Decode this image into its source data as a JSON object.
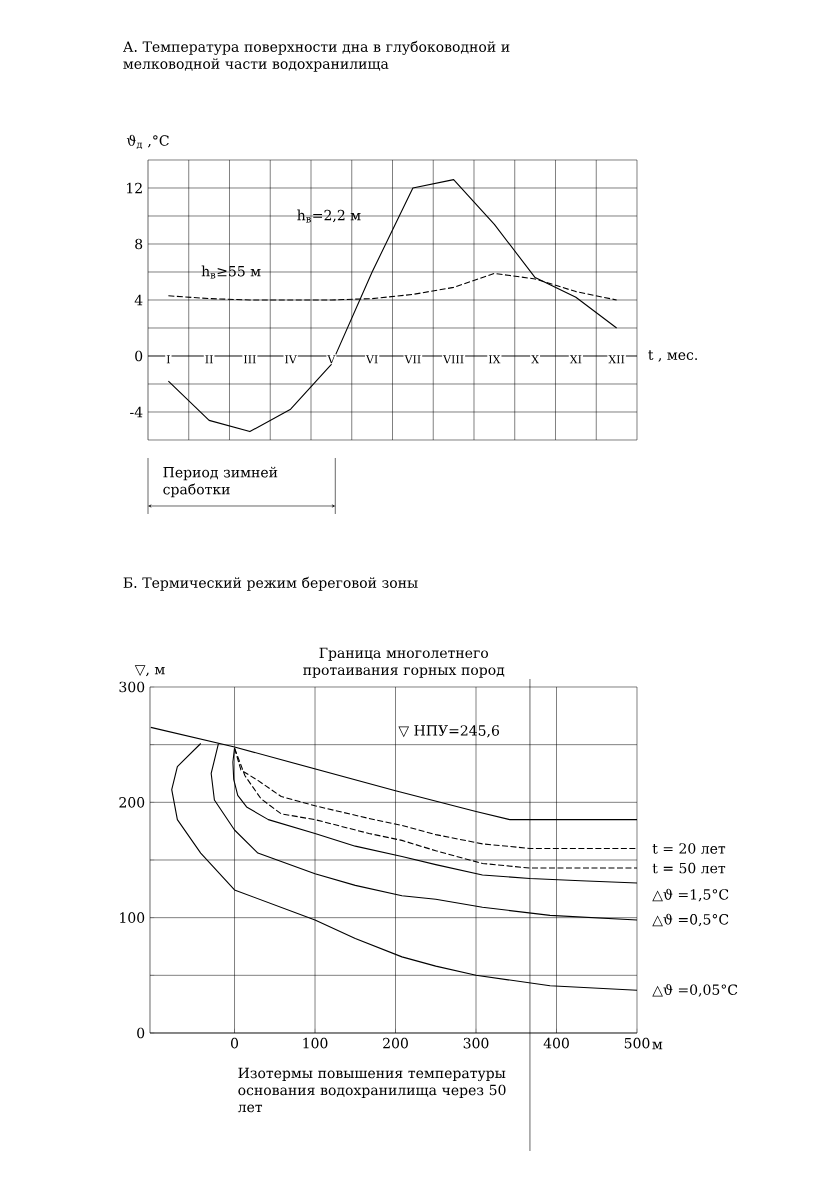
{
  "chart_data": [
    {
      "type": "line",
      "title": "А. Температура поверхности дна в глубоководной и мелководной части водохранилища",
      "xlabel": "t , мес.",
      "ylabel": "ϑ$_{д}$ ,°C",
      "categories": [
        "I",
        "II",
        "III",
        "IV",
        "V",
        "VI",
        "VII",
        "VIII",
        "IX",
        "X",
        "XI",
        "XII"
      ],
      "ylim": [
        -6,
        14
      ],
      "yticks": [
        {
          "value": -6,
          "label": null
        },
        -4,
        {
          "value": -2,
          "label": null
        },
        0,
        {
          "value": 2,
          "label": null
        },
        4,
        {
          "value": 6,
          "label": null
        },
        8,
        {
          "value": 10,
          "label": null
        },
        12,
        {
          "value": 14,
          "label": null
        }
      ],
      "grid": true,
      "series": [
        {
          "name": "h$_{в}$=2,2 м",
          "color": "#000000",
          "line_style": "solid",
          "values": [
            -1.8,
            -4.6,
            -5.4,
            -3.8,
            -0.6,
            6.0,
            12.0,
            12.6,
            9.4,
            5.6,
            4.2,
            2.0
          ]
        },
        {
          "name": "h$_{в}$≥55 м",
          "color": "#000000",
          "line_style": "dashed",
          "values": [
            4.3,
            4.1,
            4.0,
            4.0,
            4.0,
            4.1,
            4.4,
            4.9,
            5.9,
            5.5,
            4.6,
            4.0
          ]
        }
      ],
      "annotations": [
        "Период зимней сработки"
      ]
    },
    {
      "type": "line",
      "title": "Б. Термический режим береговой зоны",
      "xlabel": "м",
      "ylabel": "▽, м",
      "xlim": [
        -105,
        500
      ],
      "ylim": [
        0,
        300
      ],
      "xticks": [
        0,
        100,
        200,
        300,
        400,
        500
      ],
      "yticks": [
        0,
        {
          "value": 50,
          "label": null
        },
        100,
        {
          "value": 150,
          "label": null
        },
        200,
        {
          "value": 250,
          "label": null
        },
        300
      ],
      "grid": true,
      "series": [
        {
          "color": "#000000",
          "line_style": "solid",
          "x": [
            -104,
            0,
            100,
            200,
            300,
            342,
            400,
            500
          ],
          "values": [
            265,
            248,
            229,
            210,
            192,
            185,
            185,
            185
          ]
        },
        {
          "name": "t = 20 лет",
          "color": "#000000",
          "line_style": "dashed",
          "x": [
            0,
            8,
            29,
            58,
            100,
            167,
            208,
            250,
            308,
            367,
            430,
            500
          ],
          "values": [
            247,
            228,
            219,
            205,
            197,
            186,
            180,
            172,
            164,
            160,
            160,
            160
          ]
        },
        {
          "name": "t = 50 лет",
          "color": "#000000",
          "line_style": "dashed",
          "x": [
            0,
            13,
            33,
            58,
            100,
            167,
            208,
            250,
            308,
            367,
            430,
            500
          ],
          "values": [
            247,
            223,
            203,
            190,
            185,
            173,
            167,
            158,
            147,
            143,
            143,
            143
          ]
        },
        {
          "name": "△ϑ =1,5°C",
          "color": "#000000",
          "line_style": "solid",
          "x": [
            0,
            -2,
            -1,
            4,
            15,
            42,
            100,
            150,
            208,
            250,
            308,
            367,
            430,
            500
          ],
          "values": [
            247,
            235,
            220,
            206,
            196,
            185,
            173,
            162,
            153,
            146,
            137,
            134,
            132,
            130
          ]
        },
        {
          "name": "△ϑ =0,5°C",
          "color": "#000000",
          "line_style": "solid",
          "x": [
            -20,
            -29,
            -25,
            0,
            29,
            100,
            150,
            208,
            250,
            308,
            392,
            500
          ],
          "values": [
            251,
            225,
            202,
            176,
            156,
            138,
            128,
            119,
            116,
            109,
            102,
            98
          ]
        },
        {
          "name": "△ϑ =0,05°C",
          "color": "#000000",
          "line_style": "solid",
          "x": [
            -42,
            -71,
            -78,
            -71,
            -42,
            0,
            100,
            150,
            208,
            250,
            300,
            392,
            500
          ],
          "values": [
            251,
            231,
            211,
            185,
            156,
            124,
            98,
            82,
            66,
            58,
            50,
            41,
            37
          ]
        }
      ],
      "ref_lines": [
        {
          "axis": "x",
          "value": 367,
          "label": "Граница многолетнего протаивания горных пород"
        }
      ],
      "annotations": [
        "▽ НПУ=245,6",
        "Изотермы повышения температуры основания водохранилища через 50 лет"
      ]
    }
  ]
}
